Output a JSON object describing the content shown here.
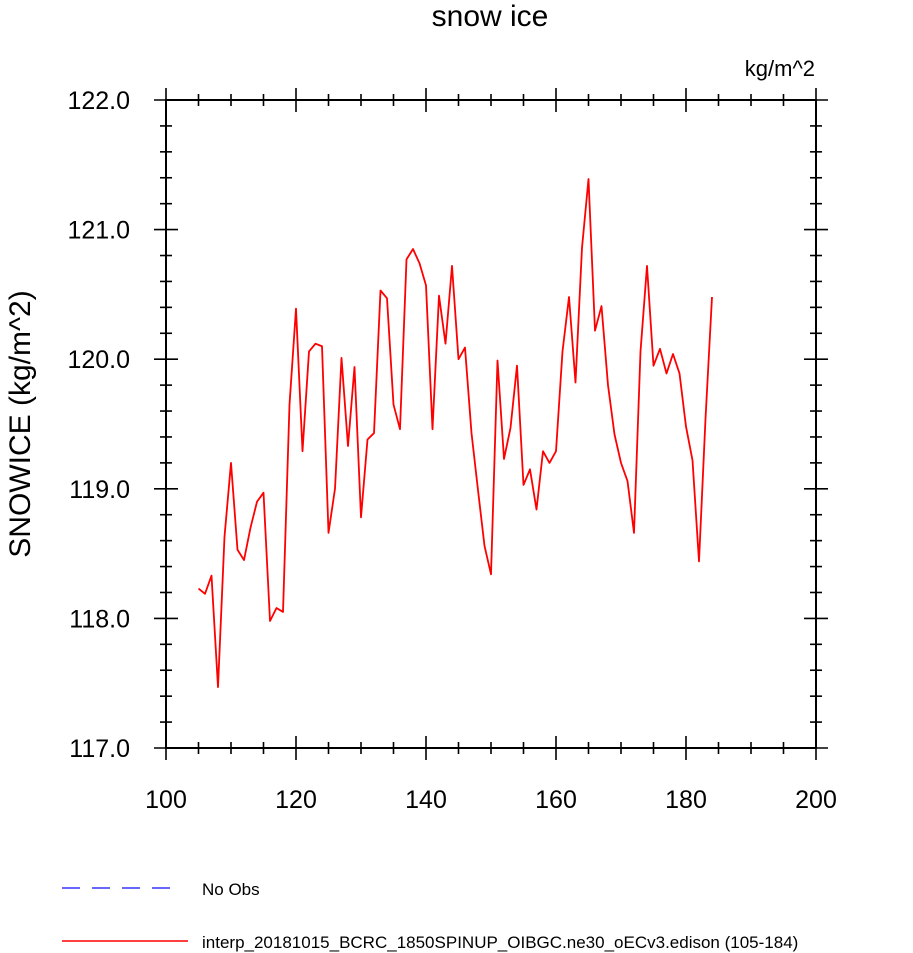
{
  "chart_data": {
    "type": "line",
    "title": "snow ice",
    "units": "kg/m^2",
    "ylabel": "SNOWICE  (kg/m^2)",
    "xlabel": "",
    "xlim": [
      100,
      200
    ],
    "ylim": [
      117.0,
      122.0
    ],
    "x_ticks": [
      100,
      120,
      140,
      160,
      180,
      200
    ],
    "y_ticks": [
      117.0,
      118.0,
      119.0,
      120.0,
      121.0,
      122.0
    ],
    "x_tick_labels": [
      "100",
      "120",
      "140",
      "160",
      "180",
      "200"
    ],
    "y_tick_labels": [
      "117.0",
      "118.0",
      "119.0",
      "120.0",
      "121.0",
      "122.0"
    ],
    "grid": false,
    "legend_position": "bottom",
    "series": [
      {
        "name": "No Obs",
        "color": "#3333ff",
        "dash": "dashed",
        "x": [],
        "values": []
      },
      {
        "name": "interp_20181015_BCRC_1850SPINUP_OIBGC.ne30_oECv3.edison (105-184)",
        "color": "#ff0000",
        "dash": "solid",
        "x": [
          105,
          106,
          107,
          108,
          109,
          110,
          111,
          112,
          113,
          114,
          115,
          116,
          117,
          118,
          119,
          120,
          121,
          122,
          123,
          124,
          125,
          126,
          127,
          128,
          129,
          130,
          131,
          132,
          133,
          134,
          135,
          136,
          137,
          138,
          139,
          140,
          141,
          142,
          143,
          144,
          145,
          146,
          147,
          148,
          149,
          150,
          151,
          152,
          153,
          154,
          155,
          156,
          157,
          158,
          159,
          160,
          161,
          162,
          163,
          164,
          165,
          166,
          167,
          168,
          169,
          170,
          171,
          172,
          173,
          174,
          175,
          176,
          177,
          178,
          179,
          180,
          181,
          182,
          183,
          184
        ],
        "values": [
          118.23,
          118.19,
          118.33,
          117.47,
          118.63,
          119.2,
          118.53,
          118.45,
          118.7,
          118.9,
          118.97,
          117.98,
          118.08,
          118.05,
          119.65,
          120.39,
          119.29,
          120.06,
          120.12,
          120.1,
          118.66,
          119.0,
          120.01,
          119.33,
          119.94,
          118.78,
          119.38,
          119.43,
          120.53,
          120.47,
          119.65,
          119.46,
          120.77,
          120.85,
          120.74,
          120.57,
          119.46,
          120.49,
          120.12,
          120.72,
          120.0,
          120.09,
          119.43,
          118.99,
          118.56,
          118.34,
          119.99,
          119.23,
          119.47,
          119.95,
          119.03,
          119.15,
          118.84,
          119.29,
          119.2,
          119.29,
          120.06,
          120.48,
          119.82,
          120.86,
          121.39,
          120.22,
          120.41,
          119.8,
          119.42,
          119.2,
          119.06,
          118.66,
          120.06,
          120.72,
          119.95,
          120.08,
          119.89,
          120.04,
          119.89,
          119.48,
          119.22,
          118.44,
          119.54,
          120.48
        ]
      }
    ]
  }
}
